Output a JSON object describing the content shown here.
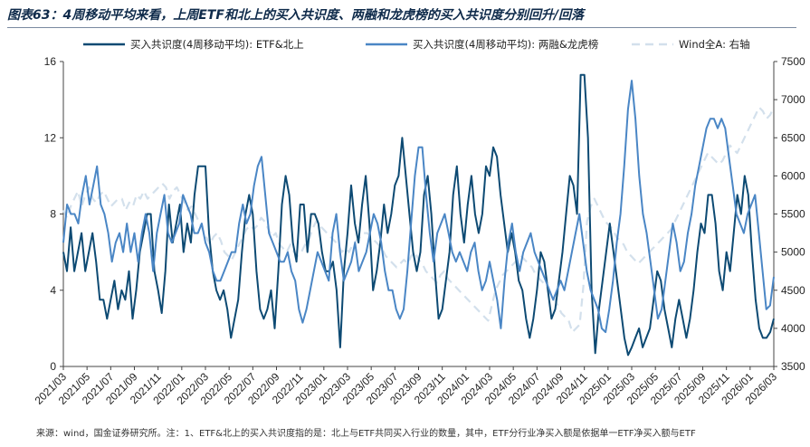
{
  "title": "图表63：4周移动平均来看，上周ETF和北上的买入共识度、两融和龙虎榜的买入共识度分别回升/回落",
  "footnote": "来源：wind，国金证券研究所。注：1、ETF&北上的买入共识度指的是：北上与ETF共同买入行业的数量，其中，ETF分行业净买入额是依据单一ETF净买入额与ETF",
  "colors": {
    "etf": "#0d4a73",
    "margin": "#4a86c5",
    "wind": "#d3e0ec"
  },
  "chart_data": {
    "type": "line",
    "title": "图表63：4周移动平均来看，上周ETF和北上的买入共识度、两融和龙虎榜的买入共识度分别回升/回落",
    "left_axis": {
      "ylim": [
        0,
        16
      ],
      "ticks": [
        "0",
        "4",
        "8",
        "12",
        "16"
      ]
    },
    "right_axis": {
      "ylim": [
        3500,
        7500
      ],
      "ticks": [
        "3500",
        "4000",
        "4500",
        "5000",
        "5500",
        "6000",
        "6500",
        "7000",
        "7500"
      ]
    },
    "x_ticks": [
      "2021/03",
      "2021/05",
      "2021/07",
      "2021/09",
      "2021/11",
      "2022/01",
      "2022/03",
      "2022/05",
      "2022/07",
      "2022/09",
      "2022/11",
      "2023/01",
      "2023/03",
      "2023/05",
      "2023/07",
      "2023/09",
      "2023/11",
      "2024/01",
      "2024/03",
      "2024/05",
      "2024/07",
      "2024/09",
      "2024/11",
      "2025/01",
      "2025/03",
      "2025/05",
      "2025/07",
      "2025/09",
      "2025/11",
      "2026/01",
      "2026/03"
    ],
    "series": [
      {
        "name": "买入共识度(4周移动平均): ETF&北上",
        "axis": "left",
        "color": "#0d4a73",
        "style": "solid",
        "values": [
          6.0,
          5.0,
          7.3,
          5.0,
          6.0,
          7.0,
          5.0,
          6.0,
          7.0,
          5.5,
          3.5,
          3.5,
          2.5,
          3.5,
          4.5,
          3.0,
          4.0,
          3.5,
          5.0,
          2.5,
          4.0,
          6.0,
          7.0,
          8.0,
          8.0,
          5.0,
          4.0,
          2.8,
          5.0,
          8.5,
          6.5,
          7.5,
          8.5,
          6.0,
          7.5,
          6.5,
          9.0,
          10.5,
          10.5,
          10.5,
          7.0,
          5.0,
          4.0,
          3.5,
          4.0,
          3.0,
          1.5,
          2.5,
          3.5,
          6.0,
          8.0,
          9.0,
          8.0,
          5.0,
          3.0,
          2.5,
          3.0,
          4.0,
          2.0,
          5.0,
          8.5,
          10.0,
          9.0,
          6.5,
          5.5,
          8.5,
          8.5,
          6.0,
          8.0,
          8.0,
          7.5,
          6.0,
          5.0,
          5.0,
          5.5,
          4.0,
          1.0,
          5.0,
          7.0,
          9.5,
          7.5,
          6.5,
          8.5,
          10.0,
          7.5,
          4.0,
          5.0,
          6.5,
          8.5,
          7.0,
          8.0,
          9.5,
          10.0,
          12.0,
          10.0,
          8.0,
          6.0,
          5.0,
          6.0,
          9.0,
          10.0,
          8.0,
          5.0,
          2.5,
          3.0,
          4.5,
          6.0,
          9.0,
          10.5,
          8.0,
          6.5,
          8.5,
          10.0,
          8.0,
          7.0,
          8.0,
          10.5,
          10.0,
          11.5,
          11.0,
          9.0,
          7.5,
          6.0,
          7.0,
          6.0,
          4.5,
          4.0,
          2.5,
          1.5,
          2.5,
          4.0,
          6.0,
          5.5,
          4.0,
          2.5,
          3.0,
          4.5,
          6.0,
          8.0,
          10.0,
          9.5,
          8.0,
          15.3,
          15.3,
          12.0,
          4.0,
          0.7,
          3.0,
          4.5,
          6.0,
          7.5,
          6.0,
          4.5,
          3.0,
          1.5,
          0.6,
          1.0,
          1.5,
          2.0,
          1.0,
          1.5,
          2.0,
          3.5,
          5.0,
          4.5,
          3.0,
          2.0,
          1.0,
          2.5,
          3.5,
          2.5,
          1.5,
          2.5,
          4.0,
          6.0,
          7.5,
          7.0,
          9.0,
          9.0,
          7.5,
          5.0,
          4.0,
          6.0,
          5.0,
          7.0,
          9.0,
          8.0,
          10.0,
          9.0,
          6.0,
          3.5,
          2.0,
          1.5,
          1.5,
          1.8,
          2.5
        ]
      },
      {
        "name": "买入共识度(4周移动平均): 两融&龙虎榜",
        "axis": "left",
        "color": "#4a86c5",
        "style": "solid",
        "values": [
          6.5,
          8.5,
          8.0,
          8.0,
          7.5,
          9.0,
          10.0,
          8.5,
          9.5,
          10.5,
          8.5,
          8.0,
          7.0,
          5.5,
          6.5,
          7.0,
          6.0,
          7.5,
          6.0,
          7.0,
          5.5,
          7.0,
          8.0,
          7.0,
          5.0,
          7.0,
          8.0,
          9.0,
          7.0,
          6.5,
          7.0,
          7.5,
          9.0,
          8.5,
          8.0,
          7.0,
          7.0,
          7.5,
          6.5,
          6.0,
          5.0,
          4.5,
          4.5,
          5.0,
          5.5,
          6.0,
          6.0,
          7.5,
          8.5,
          7.5,
          8.0,
          9.5,
          10.5,
          11.0,
          9.0,
          7.0,
          6.5,
          6.0,
          5.5,
          5.5,
          6.0,
          5.0,
          4.5,
          3.0,
          2.3,
          3.0,
          4.0,
          5.0,
          6.0,
          5.5,
          5.0,
          4.5,
          7.0,
          8.0,
          6.0,
          4.5,
          5.0,
          5.5,
          6.5,
          5.0,
          5.5,
          6.0,
          7.0,
          8.0,
          7.5,
          6.5,
          5.0,
          4.0,
          4.0,
          3.0,
          2.5,
          3.0,
          5.0,
          7.5,
          10.0,
          11.5,
          11.5,
          9.0,
          7.0,
          5.5,
          7.0,
          7.5,
          8.0,
          7.0,
          6.0,
          5.5,
          6.0,
          5.5,
          5.0,
          6.0,
          6.5,
          5.0,
          4.0,
          4.5,
          5.5,
          4.5,
          3.5,
          2.0,
          4.5,
          6.5,
          7.5,
          6.0,
          5.0,
          6.0,
          6.5,
          7.0,
          6.0,
          5.5,
          5.0,
          4.5,
          4.0,
          3.5,
          4.0,
          4.5,
          4.0,
          5.0,
          6.0,
          7.0,
          8.0,
          6.5,
          5.0,
          4.0,
          3.5,
          3.0,
          2.0,
          1.8,
          3.0,
          4.5,
          6.5,
          8.0,
          10.5,
          13.5,
          15.0,
          13.0,
          10.0,
          8.0,
          7.0,
          5.5,
          4.0,
          2.5,
          3.0,
          4.5,
          6.0,
          7.5,
          6.5,
          5.0,
          5.5,
          7.0,
          8.0,
          9.5,
          10.5,
          11.5,
          12.5,
          13.0,
          13.0,
          12.5,
          13.0,
          12.5,
          11.0,
          9.5,
          8.0,
          7.5,
          7.0,
          8.0,
          8.5,
          9.0,
          7.0,
          5.0,
          3.0,
          3.2,
          4.7
        ]
      },
      {
        "name": "Wind全A: 右轴",
        "axis": "right",
        "color": "#d3e0ec",
        "style": "dashed",
        "values": [
          5550,
          5450,
          5600,
          5700,
          5800,
          5600,
          5750,
          5850,
          5700,
          5650,
          5750,
          5800,
          5700,
          5600,
          5650,
          5700,
          5700,
          5550,
          5650,
          5600,
          5750,
          5700,
          5800,
          5700,
          5750,
          5800,
          5850,
          5900,
          5850,
          5700,
          5800,
          5850,
          5750,
          5650,
          5550,
          5600,
          5500,
          5400,
          5300,
          5200,
          5100,
          5200,
          5250,
          5150,
          5000,
          4950,
          4900,
          5000,
          5100,
          5200,
          5300,
          5350,
          5300,
          5350,
          5450,
          5400,
          5300,
          5200,
          5250,
          5100,
          5050,
          5000,
          5100,
          5000,
          4950,
          5000,
          5100,
          5150,
          5300,
          5400,
          5350,
          5300,
          5250,
          5200,
          5150,
          5100,
          5000,
          5050,
          5000,
          5100,
          5150,
          5200,
          5250,
          5250,
          5200,
          5150,
          5100,
          5050,
          4950,
          4900,
          4850,
          4800,
          4850,
          4900,
          4850,
          4950,
          5000,
          4900,
          4850,
          4750,
          4700,
          4650,
          4600,
          4700,
          4750,
          4650,
          4600,
          4550,
          4500,
          4450,
          4400,
          4350,
          4300,
          4250,
          4200,
          4150,
          4100,
          4300,
          4500,
          4600,
          4700,
          4750,
          4800,
          4850,
          4900,
          4950,
          4900,
          4850,
          4800,
          4700,
          4650,
          4600,
          4550,
          4450,
          4400,
          4300,
          4200,
          4150,
          4100,
          3950,
          4000,
          4050,
          4550,
          5400,
          5600,
          5700,
          5600,
          5500,
          5400,
          5350,
          5300,
          5200,
          5150,
          5100,
          5000,
          4950,
          4900,
          4850,
          4900,
          4950,
          5000,
          5050,
          5100,
          5150,
          5200,
          5250,
          5300,
          5400,
          5500,
          5600,
          5700,
          5800,
          5900,
          6000,
          6100,
          6200,
          6300,
          6250,
          6200,
          6150,
          6200,
          6300,
          6400,
          6350,
          6300,
          6400,
          6500,
          6600,
          6700,
          6800,
          6900,
          6850,
          6750,
          6800,
          6900
        ]
      }
    ]
  }
}
